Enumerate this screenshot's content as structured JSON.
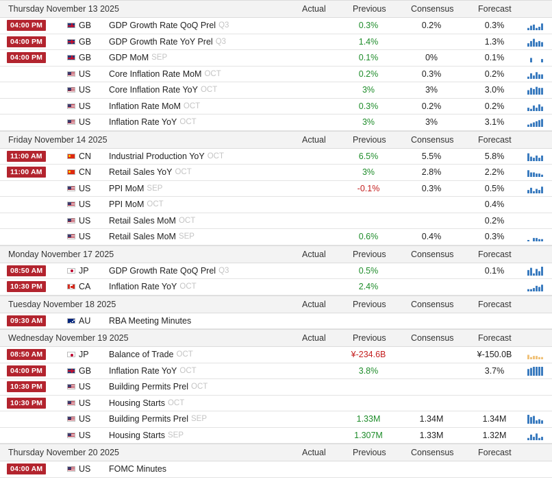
{
  "columns": {
    "actual": "Actual",
    "previous": "Previous",
    "consensus": "Consensus",
    "forecast": "Forecast"
  },
  "days": [
    {
      "title": "Thursday November 13 2025",
      "events": [
        {
          "time": "04:00 PM",
          "flag": "gb",
          "country": "GB",
          "name": "GDP Growth Rate QoQ Prel",
          "ref": "Q3",
          "previous": "0.3%",
          "prev_color": "pos",
          "consensus": "0.2%",
          "forecast": "0.3%",
          "spark": {
            "color": "#3a7bbf",
            "values": [
              2,
              4,
              5,
              2,
              3,
              6
            ]
          }
        },
        {
          "time": "04:00 PM",
          "flag": "gb",
          "country": "GB",
          "name": "GDP Growth Rate YoY Prel",
          "ref": "Q3",
          "previous": "1.4%",
          "prev_color": "pos",
          "consensus": "",
          "forecast": "1.3%",
          "spark": {
            "color": "#3a7bbf",
            "values": [
              3,
              5,
              7,
              4,
              5,
              4
            ]
          }
        },
        {
          "time": "04:00 PM",
          "flag": "gb",
          "country": "GB",
          "name": "GDP MoM",
          "ref": "SEP",
          "previous": "0.1%",
          "prev_color": "pos",
          "consensus": "0%",
          "forecast": "0.1%",
          "spark": {
            "color": "#3a7bbf",
            "values": [
              0,
              4,
              0,
              0,
              0,
              3
            ]
          }
        },
        {
          "time": "",
          "flag": "us",
          "country": "US",
          "name": "Core Inflation Rate MoM",
          "ref": "OCT",
          "previous": "0.2%",
          "prev_color": "pos",
          "consensus": "0.3%",
          "forecast": "0.2%",
          "spark": {
            "color": "#3a7bbf",
            "values": [
              2,
              5,
              3,
              6,
              4,
              4
            ]
          }
        },
        {
          "time": "",
          "flag": "us",
          "country": "US",
          "name": "Core Inflation Rate YoY",
          "ref": "OCT",
          "previous": "3%",
          "prev_color": "pos",
          "consensus": "3%",
          "forecast": "3.0%",
          "spark": {
            "color": "#3a7bbf",
            "values": [
              4,
              6,
              5,
              7,
              6,
              6
            ]
          }
        },
        {
          "time": "",
          "flag": "us",
          "country": "US",
          "name": "Inflation Rate MoM",
          "ref": "OCT",
          "previous": "0.3%",
          "prev_color": "pos",
          "consensus": "0.2%",
          "forecast": "0.2%",
          "spark": {
            "color": "#3a7bbf",
            "values": [
              3,
              2,
              5,
              3,
              6,
              4
            ]
          }
        },
        {
          "time": "",
          "flag": "us",
          "country": "US",
          "name": "Inflation Rate YoY",
          "ref": "OCT",
          "previous": "3%",
          "prev_color": "pos",
          "consensus": "3%",
          "forecast": "3.1%",
          "spark": {
            "color": "#3a7bbf",
            "values": [
              2,
              3,
              4,
              5,
              6,
              7
            ]
          }
        }
      ]
    },
    {
      "title": "Friday November 14 2025",
      "events": [
        {
          "time": "11:00 AM",
          "flag": "cn",
          "country": "CN",
          "name": "Industrial Production YoY",
          "ref": "OCT",
          "previous": "6.5%",
          "prev_color": "pos",
          "consensus": "5.5%",
          "forecast": "5.8%",
          "spark": {
            "color": "#3a7bbf",
            "values": [
              7,
              4,
              3,
              5,
              3,
              5
            ]
          }
        },
        {
          "time": "11:00 AM",
          "flag": "cn",
          "country": "CN",
          "name": "Retail Sales YoY",
          "ref": "OCT",
          "previous": "3%",
          "prev_color": "pos",
          "consensus": "2.8%",
          "forecast": "2.2%",
          "spark": {
            "color": "#3a7bbf",
            "values": [
              6,
              4,
              4,
              3,
              3,
              2
            ]
          }
        },
        {
          "time": "",
          "flag": "us",
          "country": "US",
          "name": "PPI MoM",
          "ref": "SEP",
          "previous": "-0.1%",
          "prev_color": "neg",
          "consensus": "0.3%",
          "forecast": "0.5%",
          "spark": {
            "color": "#3a7bbf",
            "values": [
              3,
              5,
              2,
              4,
              3,
              6
            ]
          }
        },
        {
          "time": "",
          "flag": "us",
          "country": "US",
          "name": "PPI MoM",
          "ref": "OCT",
          "previous": "",
          "prev_color": "neu",
          "consensus": "",
          "forecast": "0.4%",
          "spark": null
        },
        {
          "time": "",
          "flag": "us",
          "country": "US",
          "name": "Retail Sales MoM",
          "ref": "OCT",
          "previous": "",
          "prev_color": "neu",
          "consensus": "",
          "forecast": "0.2%",
          "spark": null
        },
        {
          "time": "",
          "flag": "us",
          "country": "US",
          "name": "Retail Sales MoM",
          "ref": "SEP",
          "previous": "0.6%",
          "prev_color": "pos",
          "consensus": "0.4%",
          "forecast": "0.3%",
          "spark": {
            "color": "#3a7bbf",
            "values": [
              1,
              0,
              3,
              3,
              2,
              2
            ]
          }
        }
      ]
    },
    {
      "title": "Monday November 17 2025",
      "events": [
        {
          "time": "08:50 AM",
          "flag": "jp",
          "country": "JP",
          "name": "GDP Growth Rate QoQ Prel",
          "ref": "Q3",
          "previous": "0.5%",
          "prev_color": "pos",
          "consensus": "",
          "forecast": "0.1%",
          "spark": {
            "color": "#3a7bbf",
            "values": [
              5,
              7,
              2,
              6,
              4,
              8
            ]
          }
        },
        {
          "time": "10:30 PM",
          "flag": "ca",
          "country": "CA",
          "name": "Inflation Rate YoY",
          "ref": "OCT",
          "previous": "2.4%",
          "prev_color": "pos",
          "consensus": "",
          "forecast": "",
          "spark": {
            "color": "#3a7bbf",
            "values": [
              2,
              2,
              3,
              5,
              4,
              6
            ]
          }
        }
      ]
    },
    {
      "title": "Tuesday November 18 2025",
      "events": [
        {
          "time": "09:30 AM",
          "flag": "au",
          "country": "AU",
          "name": "RBA Meeting Minutes",
          "ref": "",
          "previous": "",
          "prev_color": "neu",
          "consensus": "",
          "forecast": "",
          "spark": null
        }
      ]
    },
    {
      "title": "Wednesday November 19 2025",
      "events": [
        {
          "time": "08:50 AM",
          "flag": "jp",
          "country": "JP",
          "name": "Balance of Trade",
          "ref": "OCT",
          "previous": "¥-234.6B",
          "prev_color": "neg",
          "consensus": "",
          "forecast": "¥-150.0B",
          "spark": {
            "color": "#f0c27a",
            "values": [
              4,
              2,
              3,
              3,
              2,
              2
            ]
          }
        },
        {
          "time": "04:00 PM",
          "flag": "gb",
          "country": "GB",
          "name": "Inflation Rate YoY",
          "ref": "OCT",
          "previous": "3.8%",
          "prev_color": "pos",
          "consensus": "",
          "forecast": "3.7%",
          "spark": {
            "color": "#3a7bbf",
            "values": [
              6,
              7,
              8,
              8,
              8,
              8
            ]
          }
        },
        {
          "time": "10:30 PM",
          "flag": "us",
          "country": "US",
          "name": "Building Permits Prel",
          "ref": "OCT",
          "previous": "",
          "prev_color": "neu",
          "consensus": "",
          "forecast": "",
          "spark": null
        },
        {
          "time": "10:30 PM",
          "flag": "us",
          "country": "US",
          "name": "Housing Starts",
          "ref": "OCT",
          "previous": "",
          "prev_color": "neu",
          "consensus": "",
          "forecast": "",
          "spark": null
        },
        {
          "time": "",
          "flag": "us",
          "country": "US",
          "name": "Building Permits Prel",
          "ref": "SEP",
          "previous": "1.33M",
          "prev_color": "pos",
          "consensus": "1.34M",
          "forecast": "1.34M",
          "spark": {
            "color": "#3a7bbf",
            "values": [
              8,
              6,
              7,
              3,
              4,
              3
            ]
          }
        },
        {
          "time": "",
          "flag": "us",
          "country": "US",
          "name": "Housing Starts",
          "ref": "SEP",
          "previous": "1.307M",
          "prev_color": "pos",
          "consensus": "1.33M",
          "forecast": "1.32M",
          "spark": {
            "color": "#3a7bbf",
            "values": [
              2,
              5,
              3,
              6,
              2,
              3
            ]
          }
        }
      ]
    },
    {
      "title": "Thursday November 20 2025",
      "events": [
        {
          "time": "04:00 AM",
          "flag": "us",
          "country": "US",
          "name": "FOMC Minutes",
          "ref": "",
          "previous": "",
          "prev_color": "neu",
          "consensus": "",
          "forecast": "",
          "spark": null
        }
      ]
    }
  ]
}
